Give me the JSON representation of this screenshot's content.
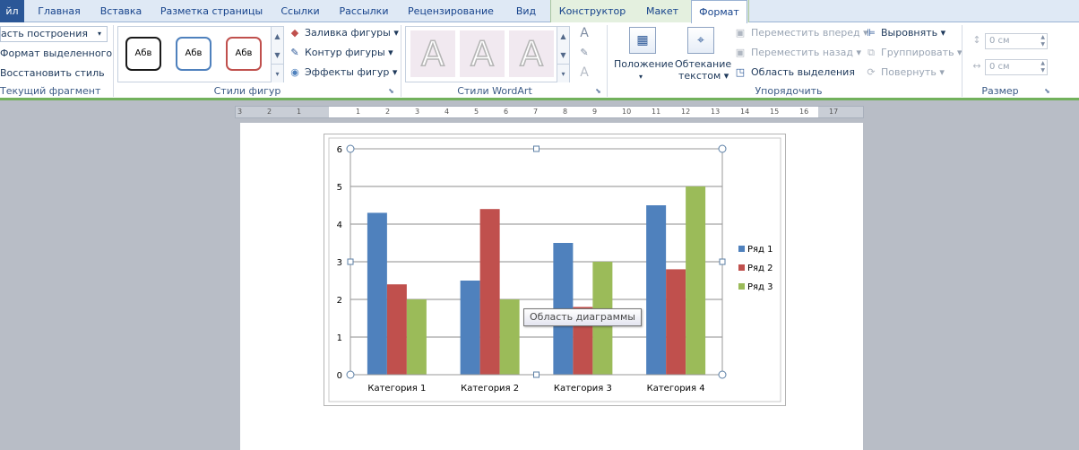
{
  "tabs": [
    {
      "label": "йл"
    },
    {
      "label": "Главная"
    },
    {
      "label": "Вставка"
    },
    {
      "label": "Разметка страницы"
    },
    {
      "label": "Ссылки"
    },
    {
      "label": "Рассылки"
    },
    {
      "label": "Рецензирование"
    },
    {
      "label": "Вид"
    },
    {
      "label": "Конструктор"
    },
    {
      "label": "Макет"
    },
    {
      "label": "Формат"
    }
  ],
  "groups": {
    "current": {
      "selector_value": "асть построения",
      "format_selection": "Формат выделенного",
      "reset_style": "Восстановить стиль",
      "label": "Текущий фрагмент"
    },
    "shape_styles": {
      "samples": [
        "Абв",
        "Абв",
        "Абв"
      ],
      "fill": "Заливка фигуры",
      "outline": "Контур фигуры",
      "effects": "Эффекты фигур",
      "label": "Стили фигур"
    },
    "wordart": {
      "samples": [
        "A",
        "A",
        "A"
      ],
      "label": "Стили WordArt"
    },
    "arrange": {
      "position": "Положение",
      "wrap_line1": "Обтекание",
      "wrap_line2": "текстом",
      "bring_forward": "Переместить вперед",
      "send_backward": "Переместить назад",
      "selection_pane": "Область выделения",
      "align": "Выровнять",
      "group": "Группировать",
      "rotate": "Повернуть",
      "label": "Упорядочить"
    },
    "size": {
      "height": "0 см",
      "width": "0 см",
      "label": "Размер"
    }
  },
  "ruler": {
    "numbers": [
      "3",
      "2",
      "1",
      "1",
      "2",
      "3",
      "4",
      "5",
      "6",
      "7",
      "8",
      "9",
      "10",
      "11",
      "12",
      "13",
      "14",
      "15",
      "16",
      "17"
    ]
  },
  "tooltip": "Область диаграммы",
  "colors": {
    "series1": "#4f81bd",
    "series2": "#c0504d",
    "series3": "#9bbb59",
    "ribbon_accent": "#72b15c"
  },
  "chart_data": {
    "type": "bar",
    "categories": [
      "Категория 1",
      "Категория 2",
      "Категория 3",
      "Категория 4"
    ],
    "series": [
      {
        "name": "Ряд 1",
        "values": [
          4.3,
          2.5,
          3.5,
          4.5
        ]
      },
      {
        "name": "Ряд 2",
        "values": [
          2.4,
          4.4,
          1.8,
          2.8
        ]
      },
      {
        "name": "Ряд 3",
        "values": [
          2,
          2,
          3,
          5
        ]
      }
    ],
    "ylim": [
      0,
      6
    ],
    "yticks": [
      "0",
      "1",
      "2",
      "3",
      "4",
      "5",
      "6"
    ],
    "grid": true,
    "legend": "right"
  }
}
